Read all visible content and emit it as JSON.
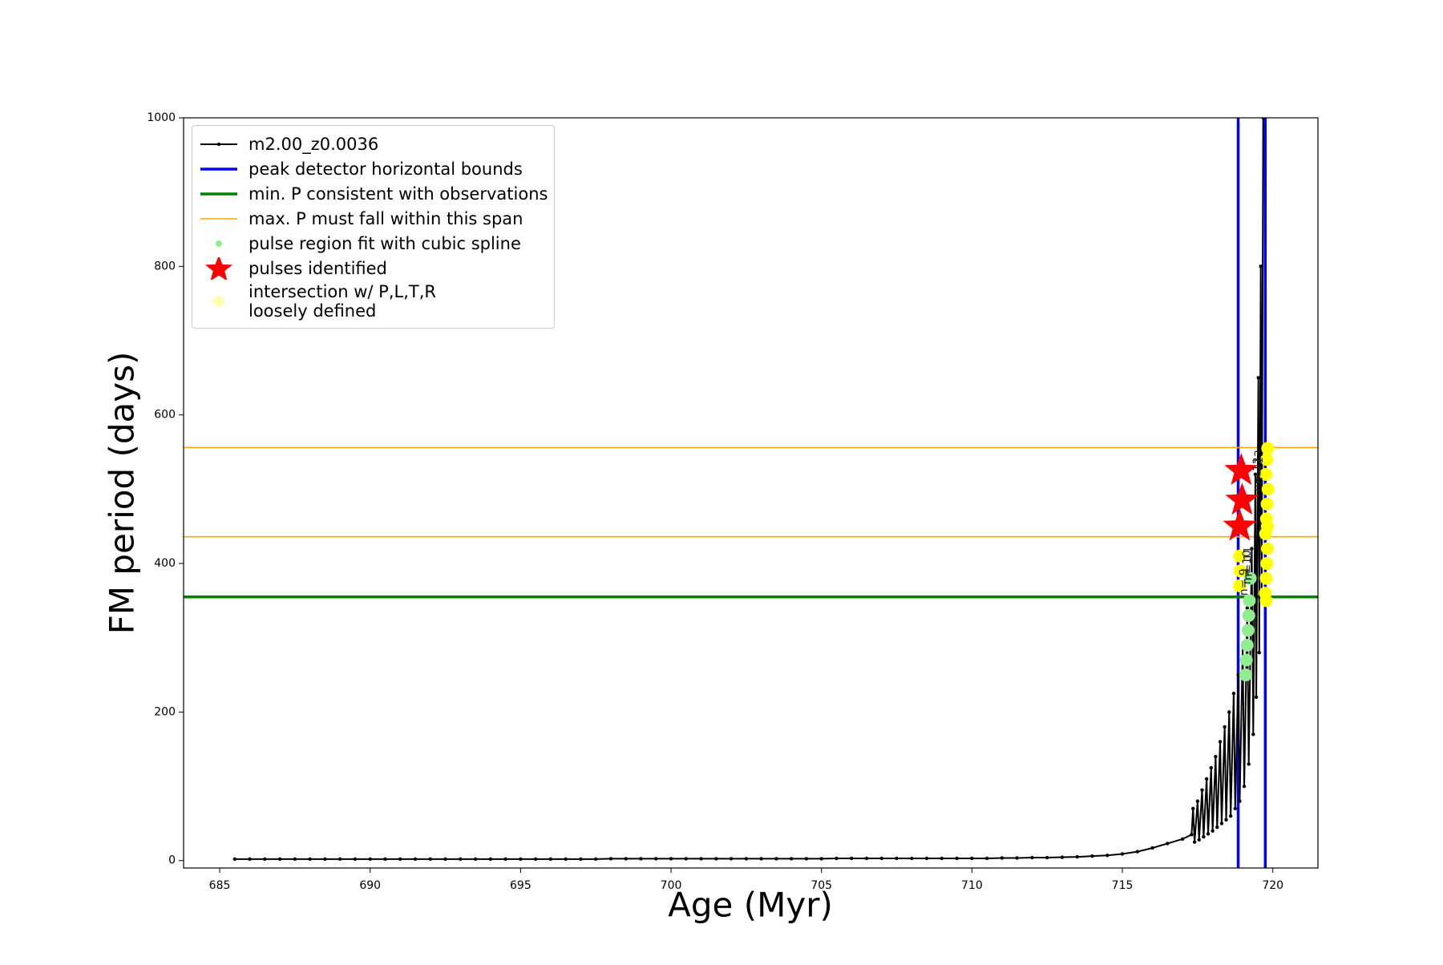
{
  "chart_data": {
    "type": "line",
    "xlabel": "Age (Myr)",
    "ylabel": "FM period (days)",
    "xlim": [
      683.8,
      721.5
    ],
    "ylim": [
      -10,
      1000
    ],
    "xticks": [
      685,
      690,
      695,
      700,
      705,
      710,
      715,
      720
    ],
    "yticks": [
      0,
      200,
      400,
      600,
      800,
      1000
    ],
    "legend": "upper left",
    "series": [
      {
        "name": "m2.00_z0.0036",
        "color": "#000000",
        "x": [
          685.5,
          686,
          686.5,
          687,
          687.5,
          688,
          688.5,
          689,
          689.5,
          690,
          690.5,
          691,
          691.5,
          692,
          692.5,
          693,
          693.5,
          694,
          694.5,
          695,
          695.5,
          696,
          696.5,
          697,
          697.5,
          698,
          698.5,
          699,
          699.5,
          700,
          700.5,
          701,
          701.5,
          702,
          702.5,
          703,
          703.5,
          704,
          704.5,
          705,
          705.5,
          706,
          706.5,
          707,
          707.5,
          708,
          708.5,
          709,
          709.5,
          710,
          710.5,
          711,
          711.5,
          712,
          712.5,
          713,
          713.5,
          714,
          714.5,
          715,
          715.5,
          716,
          716.5,
          717,
          717.3,
          717.35,
          717.4,
          717.5,
          717.55,
          717.65,
          717.7,
          717.8,
          717.85,
          717.95,
          718.0,
          718.1,
          718.15,
          718.25,
          718.3,
          718.4,
          718.45,
          718.55,
          718.6,
          718.7,
          718.75,
          718.85,
          718.9,
          719.0,
          719.05,
          719.15,
          719.2,
          719.3,
          719.35,
          719.42,
          719.45,
          719.52,
          719.55,
          719.6,
          719.63,
          719.68
        ],
        "values": [
          2,
          2,
          2,
          2,
          2,
          2,
          2,
          2,
          2,
          2,
          2,
          2,
          2,
          2,
          2,
          2,
          2,
          2,
          2,
          2,
          2,
          2,
          2,
          2,
          2,
          2.5,
          2.5,
          2.5,
          2.5,
          2.5,
          2.5,
          2.5,
          2.5,
          2.5,
          2.5,
          2.5,
          2.5,
          2.5,
          2.5,
          2.5,
          3,
          3,
          3,
          3,
          3,
          3,
          3,
          3,
          3,
          3,
          3,
          3.5,
          3.5,
          4,
          4,
          4.5,
          5,
          6,
          7,
          9,
          12,
          17,
          23,
          29,
          35,
          70,
          25,
          80,
          28,
          95,
          32,
          110,
          36,
          125,
          40,
          140,
          45,
          160,
          50,
          180,
          55,
          200,
          60,
          225,
          70,
          250,
          80,
          290,
          100,
          340,
          130,
          420,
          170,
          520,
          220,
          650,
          280,
          800,
          350,
          1000
        ]
      }
    ],
    "reference_lines": [
      {
        "name": "peak detector horizontal bounds",
        "color": "#0000ff",
        "orientation": "vertical",
        "values": [
          718.85,
          719.75
        ]
      },
      {
        "name": "min. P consistent with observations",
        "color": "#008000",
        "orientation": "horizontal",
        "values": [
          355
        ]
      },
      {
        "name": "max. P must fall within this span",
        "color": "#ffa500",
        "orientation": "horizontal",
        "values": [
          436,
          556
        ]
      }
    ],
    "scatter": [
      {
        "name": "pulse region fit with cubic spline",
        "color": "#90ee90",
        "marker": "circle",
        "x": [
          719.1,
          719.12,
          719.15,
          719.18,
          719.2,
          719.22,
          719.25
        ],
        "values": [
          250,
          270,
          290,
          310,
          330,
          350,
          380
        ]
      },
      {
        "name": "pulses identified",
        "color": "#ff0000",
        "marker": "star",
        "x": [
          718.95,
          718.98,
          718.9
        ],
        "values": [
          525,
          485,
          450
        ]
      },
      {
        "name": "intersection w/ P,L,T,R\nloosely defined",
        "color": "#ffff00",
        "marker": "circle",
        "x": [
          718.9,
          718.92,
          718.9,
          719.75,
          719.78,
          719.8,
          719.82,
          719.76,
          719.79,
          719.81,
          719.84,
          719.77,
          719.8,
          719.83,
          719.78,
          719.82
        ],
        "values": [
          370,
          390,
          410,
          360,
          380,
          400,
          420,
          440,
          460,
          480,
          500,
          520,
          540,
          555,
          350,
          450
        ]
      }
    ],
    "annotations": [
      {
        "text": "n= 9",
        "x": 719.05,
        "y": 375
      },
      {
        "text": "n= 10",
        "x": 719.15,
        "y": 395
      },
      {
        "text": "n= 11",
        "x": 719.2,
        "y": 400
      },
      {
        "text": "n= 12",
        "x": 719.5,
        "y": 520
      },
      {
        "text": "n= 13",
        "x": 719.55,
        "y": 530
      }
    ]
  }
}
